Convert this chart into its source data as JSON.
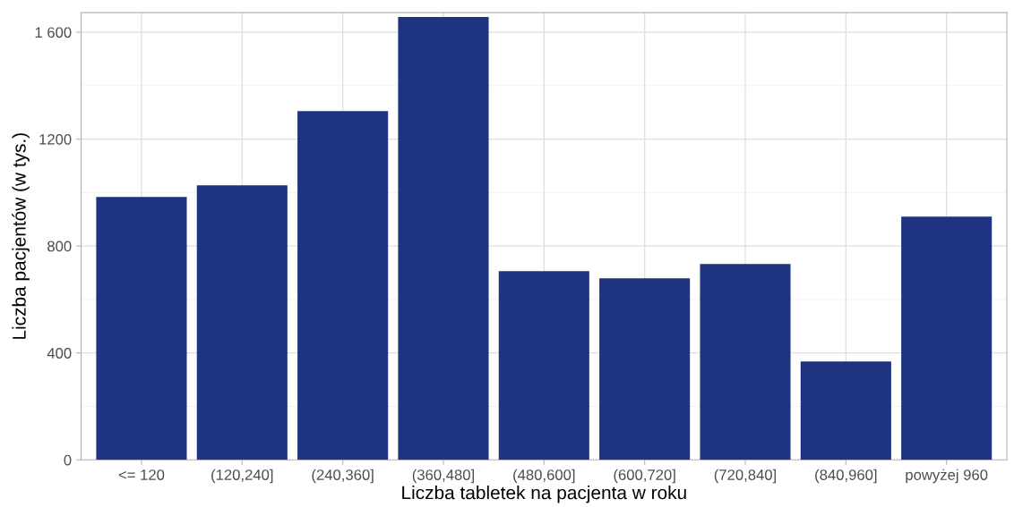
{
  "chart_data": {
    "type": "bar",
    "xlabel": "Liczba tabletek na pacjenta w roku",
    "ylabel": "Liczba pacjentów (w tys.)",
    "categories": [
      "<= 120",
      "(120,240]",
      "(240,360]",
      "(360,480]",
      "(480,600]",
      "(600,720]",
      "(720,840]",
      "(840,960]",
      "powyżej 960"
    ],
    "values": [
      984,
      1027,
      1305,
      1657,
      706,
      679,
      733,
      368,
      910
    ],
    "color": "#1f3480",
    "ylim": [
      0,
      1673
    ],
    "yticks": [
      0,
      400,
      800,
      1200,
      {
        "value": 1600,
        "label": "1 600"
      }
    ],
    "grid": true
  }
}
